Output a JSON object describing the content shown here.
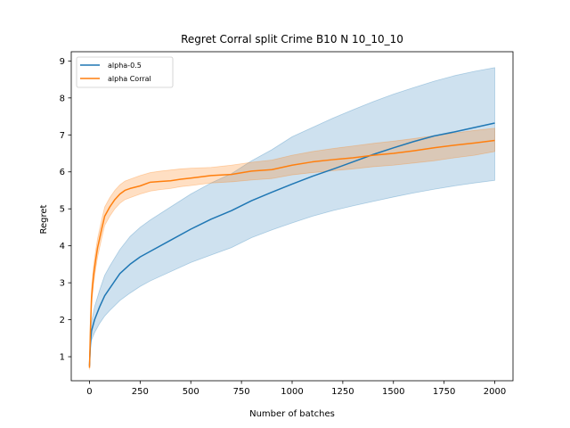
{
  "chart_data": {
    "type": "line",
    "title": "Regret Corral split Crime B10 N 10_10_10",
    "xlabel": "Number of batches",
    "ylabel": "Regret",
    "xlim": [
      -90,
      2090
    ],
    "ylim": [
      0.35,
      9.25
    ],
    "xticks": [
      0,
      250,
      500,
      750,
      1000,
      1250,
      1500,
      1750,
      2000
    ],
    "yticks": [
      1,
      2,
      3,
      4,
      5,
      6,
      7,
      8,
      9
    ],
    "grid": false,
    "legend_position": "top-left",
    "series": [
      {
        "name": "alpha-0.5",
        "color": "#1f77b4",
        "band_color": "#1f77b4",
        "x": [
          0,
          5,
          10,
          25,
          50,
          75,
          100,
          150,
          200,
          250,
          300,
          400,
          500,
          600,
          700,
          800,
          900,
          1000,
          1100,
          1200,
          1300,
          1400,
          1500,
          1600,
          1700,
          1800,
          1900,
          2000
        ],
        "y": [
          0.75,
          1.4,
          1.7,
          2.0,
          2.35,
          2.65,
          2.85,
          3.25,
          3.5,
          3.7,
          3.85,
          4.15,
          4.45,
          4.72,
          4.95,
          5.22,
          5.45,
          5.67,
          5.88,
          6.07,
          6.27,
          6.47,
          6.65,
          6.82,
          6.97,
          7.08,
          7.2,
          7.32
        ],
        "lower": [
          0.7,
          1.25,
          1.45,
          1.65,
          1.9,
          2.1,
          2.25,
          2.52,
          2.72,
          2.9,
          3.05,
          3.3,
          3.55,
          3.75,
          3.95,
          4.22,
          4.43,
          4.62,
          4.8,
          4.95,
          5.08,
          5.2,
          5.32,
          5.43,
          5.53,
          5.62,
          5.7,
          5.77
        ],
        "upper": [
          0.8,
          1.55,
          1.95,
          2.35,
          2.8,
          3.2,
          3.45,
          3.9,
          4.25,
          4.5,
          4.7,
          5.05,
          5.4,
          5.7,
          5.95,
          6.3,
          6.6,
          6.95,
          7.2,
          7.45,
          7.68,
          7.9,
          8.1,
          8.28,
          8.45,
          8.6,
          8.72,
          8.82
        ]
      },
      {
        "name": "alpha Corral",
        "color": "#ff7f0e",
        "band_color": "#ff7f0e",
        "x": [
          0,
          5,
          10,
          20,
          30,
          40,
          50,
          60,
          75,
          100,
          125,
          150,
          175,
          200,
          250,
          300,
          350,
          400,
          450,
          500,
          600,
          700,
          800,
          900,
          1000,
          1100,
          1200,
          1300,
          1400,
          1500,
          1600,
          1700,
          1800,
          1900,
          2000
        ],
        "y": [
          0.7,
          1.8,
          2.6,
          3.2,
          3.6,
          3.95,
          4.2,
          4.45,
          4.8,
          5.05,
          5.25,
          5.4,
          5.5,
          5.55,
          5.62,
          5.72,
          5.74,
          5.76,
          5.8,
          5.83,
          5.9,
          5.93,
          6.02,
          6.06,
          6.18,
          6.27,
          6.33,
          6.38,
          6.45,
          6.5,
          6.57,
          6.65,
          6.72,
          6.78,
          6.85
        ],
        "lower": [
          0.65,
          1.6,
          2.35,
          2.95,
          3.35,
          3.7,
          3.95,
          4.2,
          4.55,
          4.8,
          5.0,
          5.15,
          5.25,
          5.3,
          5.4,
          5.48,
          5.52,
          5.55,
          5.6,
          5.63,
          5.7,
          5.73,
          5.78,
          5.82,
          5.92,
          5.98,
          6.03,
          6.08,
          6.14,
          6.18,
          6.24,
          6.3,
          6.38,
          6.45,
          6.55
        ],
        "upper": [
          0.75,
          2.0,
          2.85,
          3.45,
          3.85,
          4.2,
          4.45,
          4.7,
          5.05,
          5.3,
          5.5,
          5.65,
          5.75,
          5.8,
          5.9,
          5.98,
          6.02,
          6.05,
          6.08,
          6.1,
          6.12,
          6.18,
          6.26,
          6.32,
          6.45,
          6.55,
          6.63,
          6.7,
          6.77,
          6.83,
          6.9,
          6.98,
          7.05,
          7.12,
          7.18
        ]
      }
    ]
  }
}
